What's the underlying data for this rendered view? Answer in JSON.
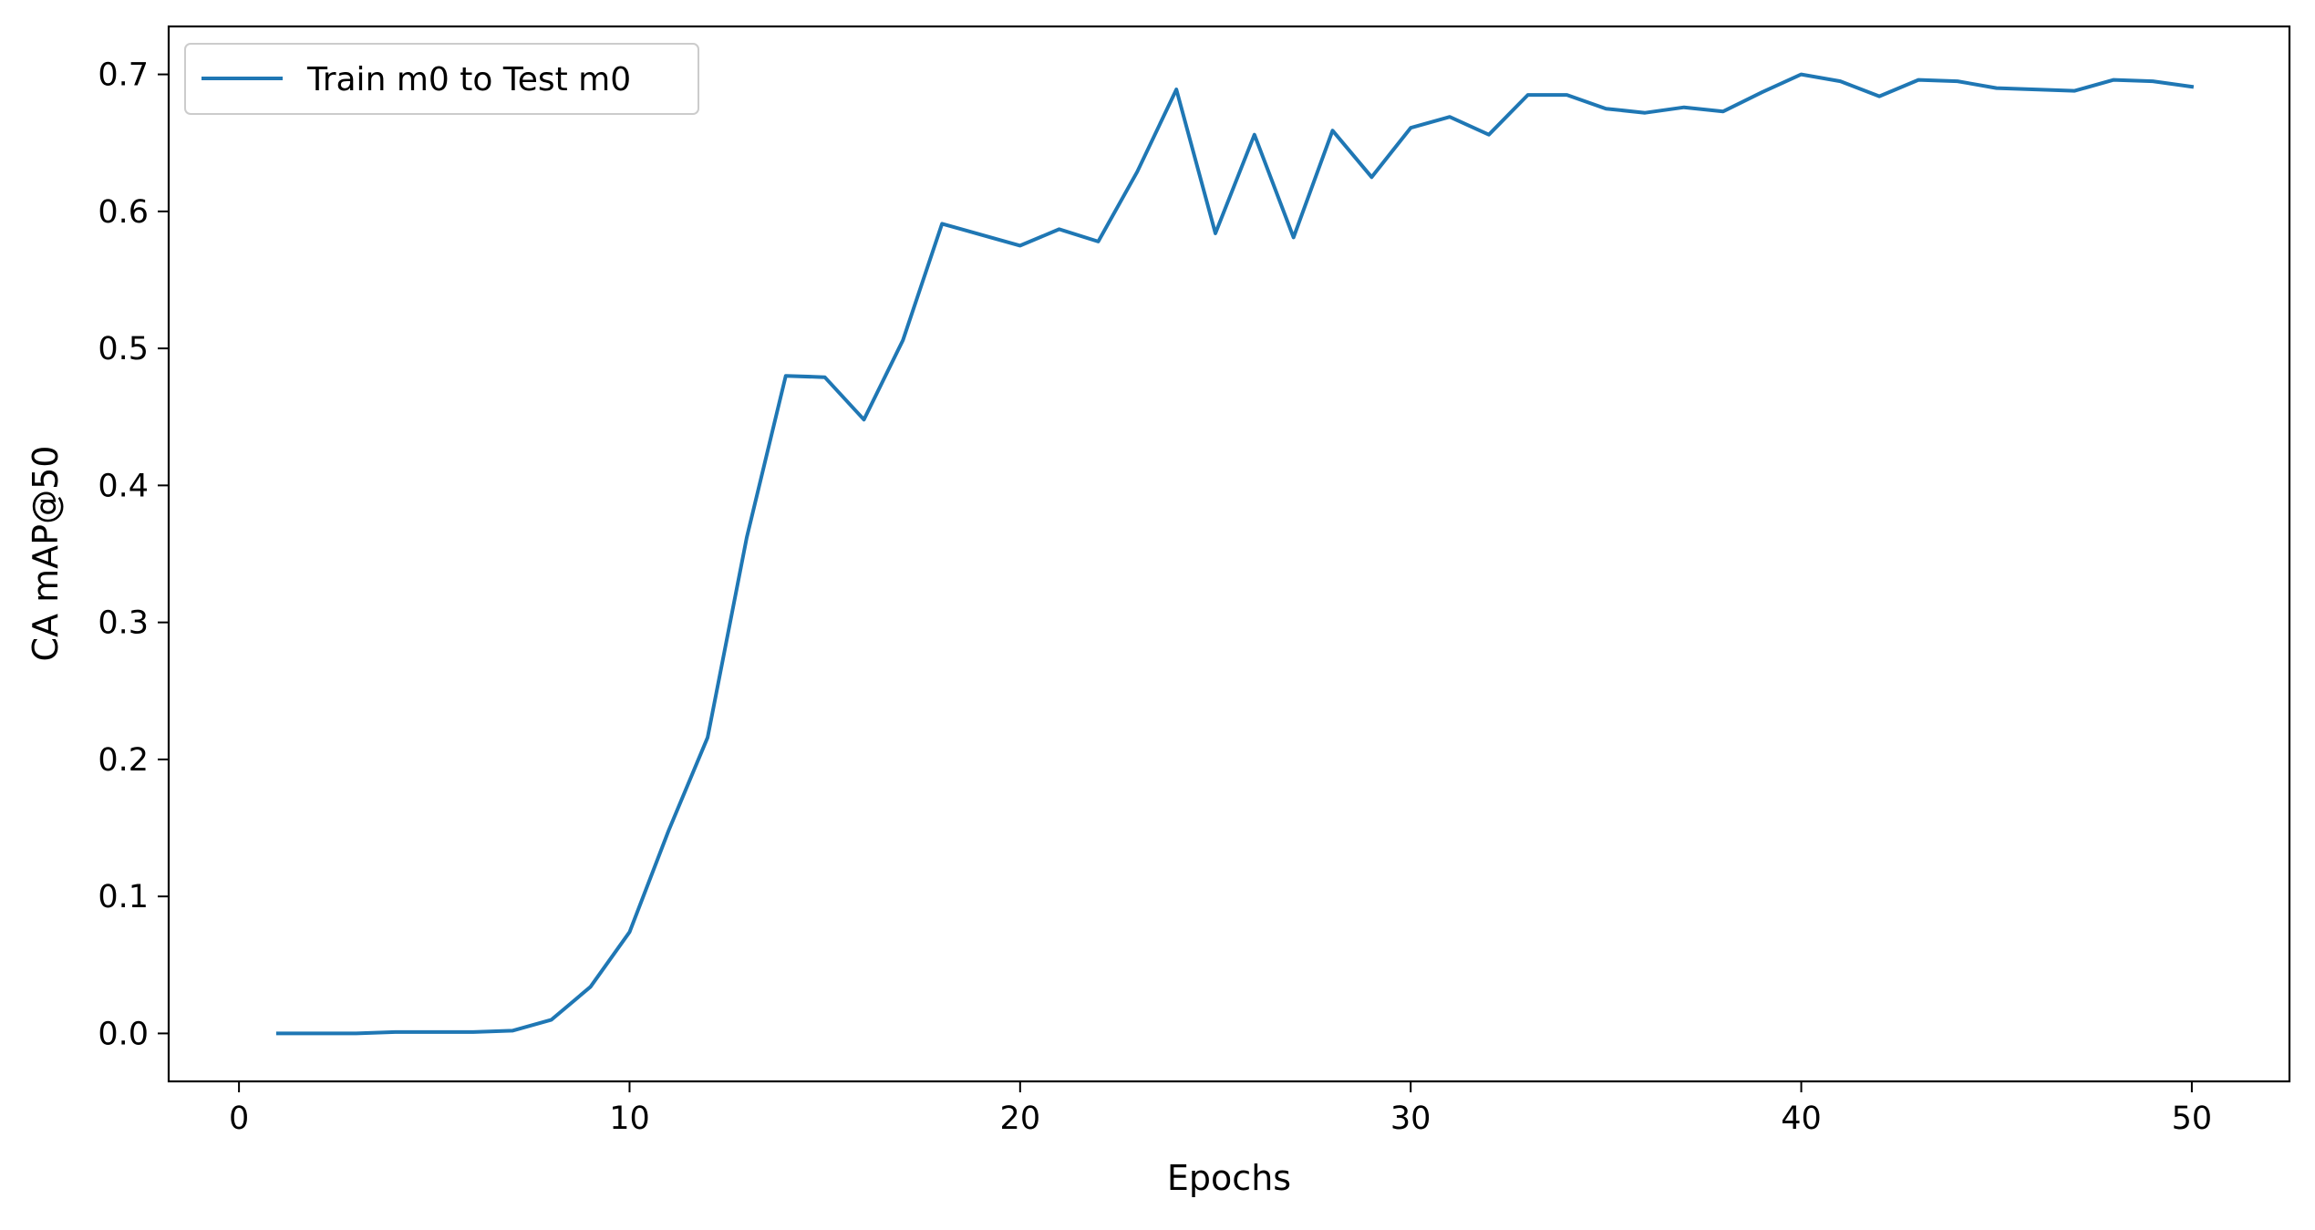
{
  "chart_data": {
    "type": "line",
    "title": "",
    "xlabel": "Epochs",
    "ylabel": "CA mAP@50",
    "xlim": [
      -1.8,
      52.5
    ],
    "ylim": [
      -0.035,
      0.735
    ],
    "xticks": [
      0,
      10,
      20,
      30,
      40,
      50
    ],
    "xtick_labels": [
      "0",
      "10",
      "20",
      "30",
      "40",
      "50"
    ],
    "yticks": [
      0.0,
      0.1,
      0.2,
      0.3,
      0.4,
      0.5,
      0.6,
      0.7
    ],
    "ytick_labels": [
      "0.0",
      "0.1",
      "0.2",
      "0.3",
      "0.4",
      "0.5",
      "0.6",
      "0.7"
    ],
    "grid": false,
    "legend_position": "top-left",
    "series": [
      {
        "name": "Train m0 to Test m0",
        "color": "#1f77b4",
        "x": [
          1,
          2,
          3,
          4,
          5,
          6,
          7,
          8,
          9,
          10,
          11,
          12,
          13,
          14,
          15,
          16,
          17,
          18,
          19,
          20,
          21,
          22,
          23,
          24,
          25,
          26,
          27,
          28,
          29,
          30,
          31,
          32,
          33,
          34,
          35,
          36,
          37,
          38,
          39,
          40,
          41,
          42,
          43,
          44,
          45,
          46,
          47,
          48,
          49,
          50
        ],
        "y": [
          0.0,
          0.0,
          0.0,
          0.001,
          0.001,
          0.001,
          0.002,
          0.01,
          0.034,
          0.074,
          0.148,
          0.216,
          0.362,
          0.48,
          0.479,
          0.448,
          0.506,
          0.591,
          0.583,
          0.575,
          0.587,
          0.578,
          0.629,
          0.689,
          0.584,
          0.656,
          0.581,
          0.659,
          0.625,
          0.661,
          0.669,
          0.656,
          0.685,
          0.685,
          0.675,
          0.672,
          0.676,
          0.673,
          0.687,
          0.7,
          0.695,
          0.684,
          0.696,
          0.695,
          0.69,
          0.689,
          0.688,
          0.696,
          0.695,
          0.691
        ]
      }
    ]
  }
}
